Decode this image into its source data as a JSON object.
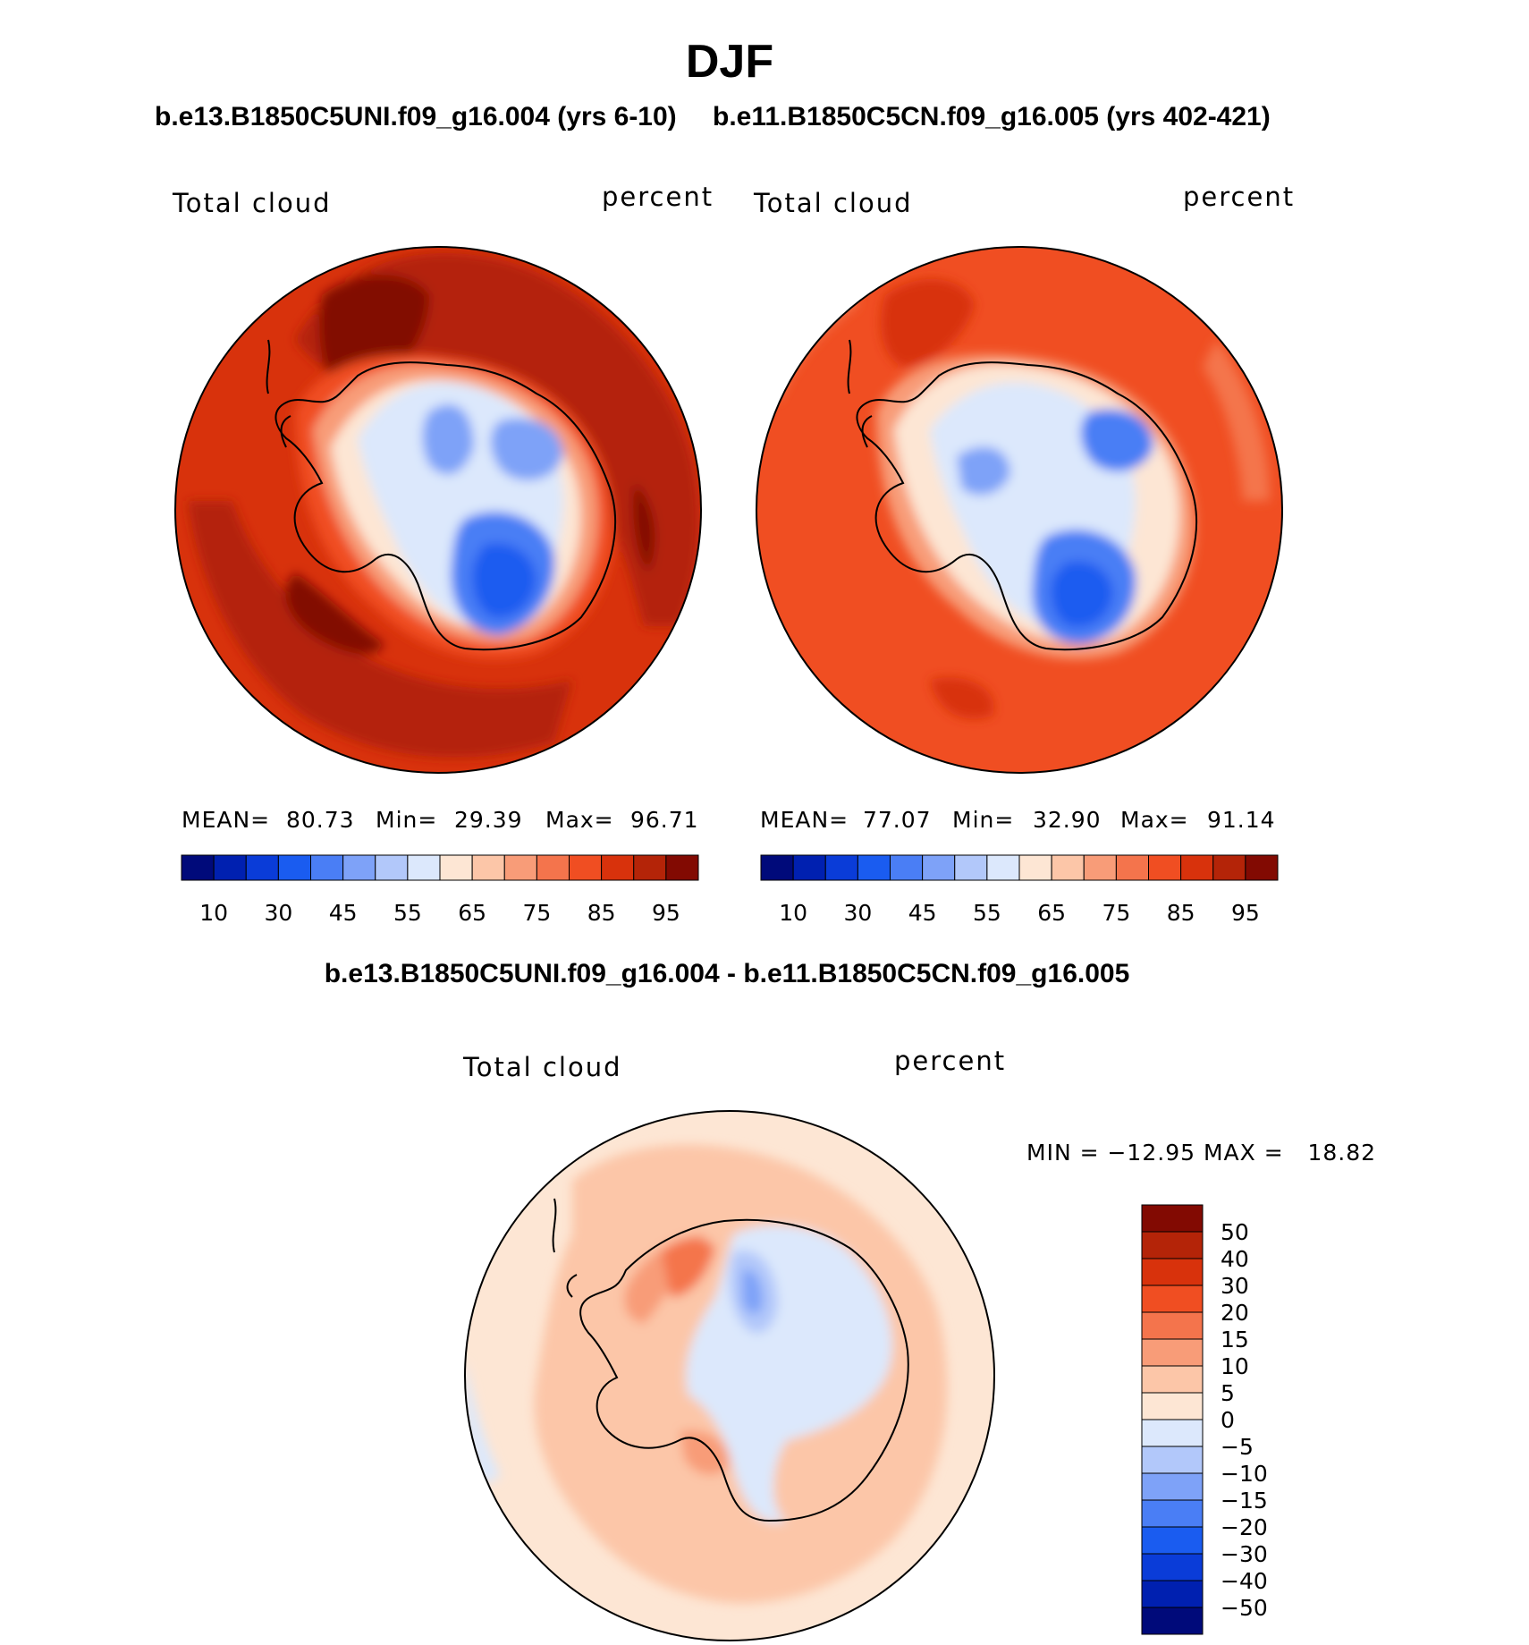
{
  "title": "DJF",
  "panels": [
    {
      "case": "b.e13.B1850C5UNI.f09_g16.004 (yrs 6-10)",
      "variable": "Total cloud",
      "units": "percent",
      "stats": {
        "mean_label": "MEAN=",
        "mean": "80.73",
        "min_label": "Min=",
        "min": "29.39",
        "max_label": "Max=",
        "max": "96.71"
      },
      "colorbar": {
        "colors": [
          "#000a7a",
          "#0020b0",
          "#0a3cd8",
          "#1a5cf0",
          "#4a7ef5",
          "#7ea2f8",
          "#b2c8fa",
          "#dce8fc",
          "#fde6d4",
          "#fcc6a8",
          "#f89c78",
          "#f4744c",
          "#f04e22",
          "#d8320c",
          "#b42408",
          "#820a02"
        ],
        "tick_labels": [
          "10",
          "30",
          "45",
          "55",
          "65",
          "75",
          "85",
          "95"
        ]
      }
    },
    {
      "case": "b.e11.B1850C5CN.f09_g16.005 (yrs 402-421)",
      "variable": "Total cloud",
      "units": "percent",
      "stats": {
        "mean_label": "MEAN=",
        "mean": "77.07",
        "min_label": "Min=",
        "min": "32.90",
        "max_label": "Max=",
        "max": "91.14"
      },
      "colorbar": {
        "colors": [
          "#000a7a",
          "#0020b0",
          "#0a3cd8",
          "#1a5cf0",
          "#4a7ef5",
          "#7ea2f8",
          "#b2c8fa",
          "#dce8fc",
          "#fde6d4",
          "#fcc6a8",
          "#f89c78",
          "#f4744c",
          "#f04e22",
          "#d8320c",
          "#b42408",
          "#820a02"
        ],
        "tick_labels": [
          "10",
          "30",
          "45",
          "55",
          "65",
          "75",
          "85",
          "95"
        ]
      }
    }
  ],
  "difference": {
    "title": "b.e13.B1850C5UNI.f09_g16.004 - b.e11.B1850C5CN.f09_g16.005",
    "variable": "Total cloud",
    "units": "percent",
    "stats": "MIN = −12.95 MAX =   18.82",
    "colorbar": {
      "colors": [
        "#820a02",
        "#b42408",
        "#d8320c",
        "#f04e22",
        "#f4744c",
        "#f89c78",
        "#fcc6a8",
        "#fde6d4",
        "#dce8fc",
        "#b2c8fa",
        "#7ea2f8",
        "#4a7ef5",
        "#1a5cf0",
        "#0a3cd8",
        "#0020b0",
        "#000a7a"
      ],
      "tick_labels": [
        "50",
        "40",
        "30",
        "20",
        "15",
        "10",
        "5",
        "0",
        "−5",
        "−10",
        "−15",
        "−20",
        "−30",
        "−40",
        "−50"
      ]
    }
  }
}
